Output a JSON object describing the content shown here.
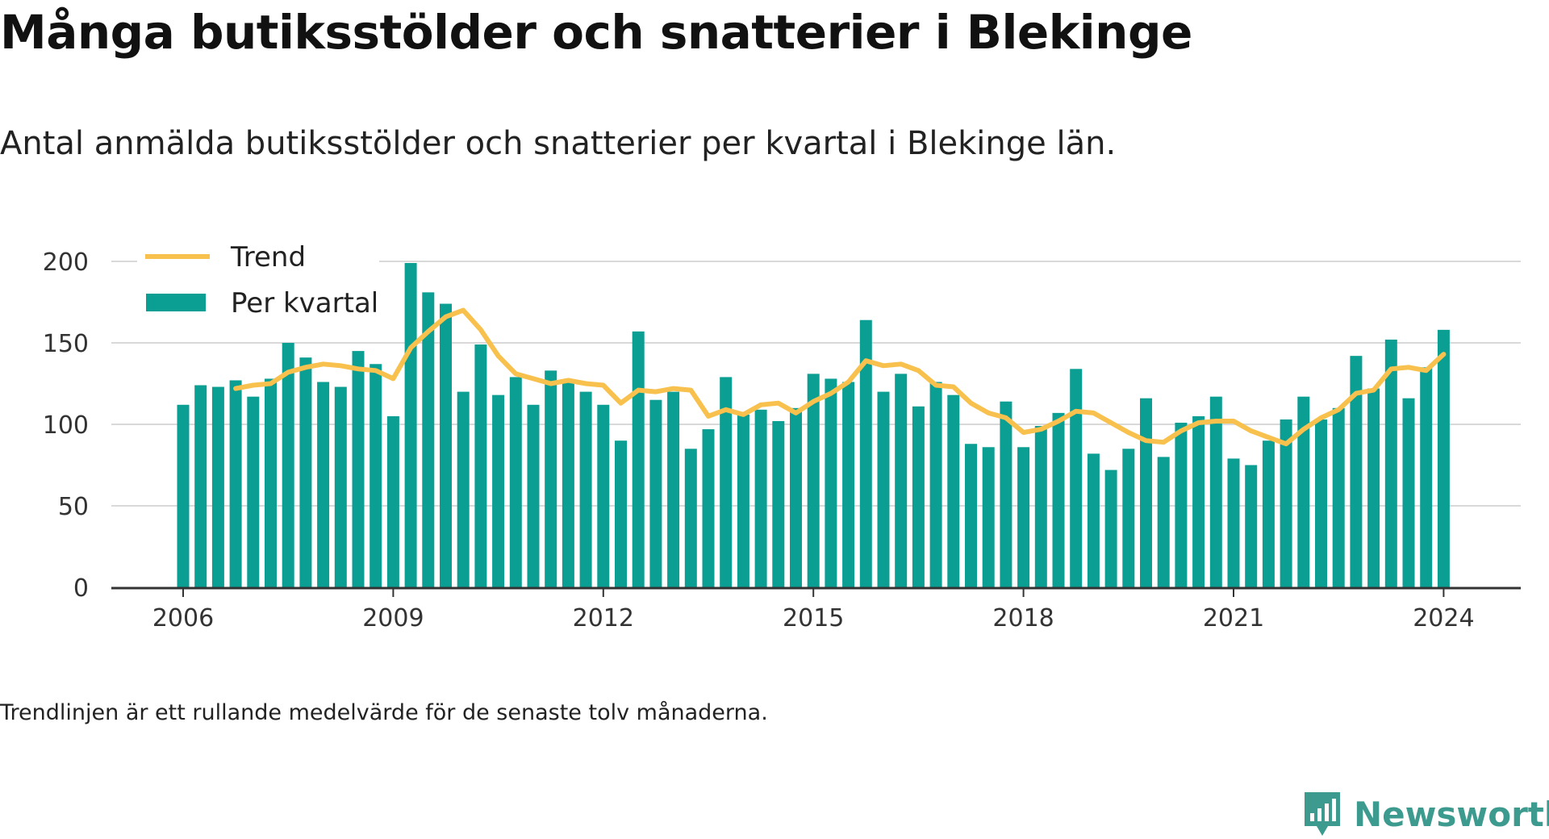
{
  "header": {
    "title": "Många butiksstölder och snatterier i Blekinge",
    "subtitle": "Antal anmälda butiksstölder och snatterier per kvartal i Blekinge län."
  },
  "footer": {
    "note": "Trendlinjen är ett rullande medelvärde för de senaste tolv månaderna.",
    "brand_name": "Newsworthy",
    "brand_icon": "newsworthy-bar-chart-logo-icon"
  },
  "colors": {
    "bars": "#0b9e93",
    "trend": "#f8c04c",
    "grid": "#d9d9d9",
    "axis": "#333333",
    "brand": "#3d9a8f"
  },
  "chart_data": {
    "type": "bar",
    "legend": {
      "placement": "top-left",
      "entries": [
        "Trend",
        "Per kvartal"
      ]
    },
    "x_tick_labels": [
      "2006",
      "2009",
      "2012",
      "2015",
      "2018",
      "2021",
      "2024"
    ],
    "y_tick_labels": [
      "0",
      "50",
      "100",
      "150",
      "200"
    ],
    "ylim": [
      0,
      200
    ],
    "grid": true,
    "categories": [
      "2006 Q1",
      "2006 Q2",
      "2006 Q3",
      "2006 Q4",
      "2007 Q1",
      "2007 Q2",
      "2007 Q3",
      "2007 Q4",
      "2008 Q1",
      "2008 Q2",
      "2008 Q3",
      "2008 Q4",
      "2009 Q1",
      "2009 Q2",
      "2009 Q3",
      "2009 Q4",
      "2010 Q1",
      "2010 Q2",
      "2010 Q3",
      "2010 Q4",
      "2011 Q1",
      "2011 Q2",
      "2011 Q3",
      "2011 Q4",
      "2012 Q1",
      "2012 Q2",
      "2012 Q3",
      "2012 Q4",
      "2013 Q1",
      "2013 Q2",
      "2013 Q3",
      "2013 Q4",
      "2014 Q1",
      "2014 Q2",
      "2014 Q3",
      "2014 Q4",
      "2015 Q1",
      "2015 Q2",
      "2015 Q3",
      "2015 Q4",
      "2016 Q1",
      "2016 Q2",
      "2016 Q3",
      "2016 Q4",
      "2017 Q1",
      "2017 Q2",
      "2017 Q3",
      "2017 Q4",
      "2018 Q1",
      "2018 Q2",
      "2018 Q3",
      "2018 Q4",
      "2019 Q1",
      "2019 Q2",
      "2019 Q3",
      "2019 Q4",
      "2020 Q1",
      "2020 Q2",
      "2020 Q3",
      "2020 Q4",
      "2021 Q1",
      "2021 Q2",
      "2021 Q3",
      "2021 Q4",
      "2022 Q1",
      "2022 Q2",
      "2022 Q3",
      "2022 Q4",
      "2023 Q1",
      "2023 Q2",
      "2023 Q3",
      "2023 Q4",
      "2024 Q1"
    ],
    "series": [
      {
        "name": "Per kvartal",
        "type": "bar",
        "values": [
          112,
          124,
          123,
          127,
          117,
          128,
          150,
          141,
          126,
          123,
          145,
          137,
          105,
          199,
          181,
          174,
          120,
          149,
          118,
          129,
          112,
          133,
          126,
          120,
          112,
          90,
          157,
          115,
          120,
          85,
          97,
          129,
          106,
          109,
          102,
          110,
          131,
          128,
          126,
          164,
          120,
          131,
          111,
          126,
          118,
          88,
          86,
          114,
          86,
          99,
          107,
          134,
          82,
          72,
          85,
          116,
          80,
          101,
          105,
          117,
          79,
          75,
          90,
          103,
          117,
          103,
          110,
          142,
          122,
          152,
          116,
          135,
          158
        ]
      },
      {
        "name": "Trend",
        "type": "line",
        "values": [
          null,
          null,
          null,
          122,
          124,
          125,
          132,
          135,
          137,
          136,
          134,
          133,
          128,
          147,
          157,
          166,
          170,
          158,
          142,
          131,
          128,
          125,
          127,
          125,
          124,
          113,
          121,
          120,
          122,
          121,
          105,
          109,
          106,
          112,
          113,
          107,
          114,
          119,
          126,
          139,
          136,
          137,
          133,
          124,
          123,
          113,
          107,
          104,
          95,
          97,
          102,
          108,
          107,
          101,
          95,
          90,
          89,
          96,
          101,
          102,
          102,
          96,
          92,
          88,
          97,
          104,
          109,
          119,
          121,
          134,
          135,
          133,
          143
        ]
      }
    ]
  }
}
